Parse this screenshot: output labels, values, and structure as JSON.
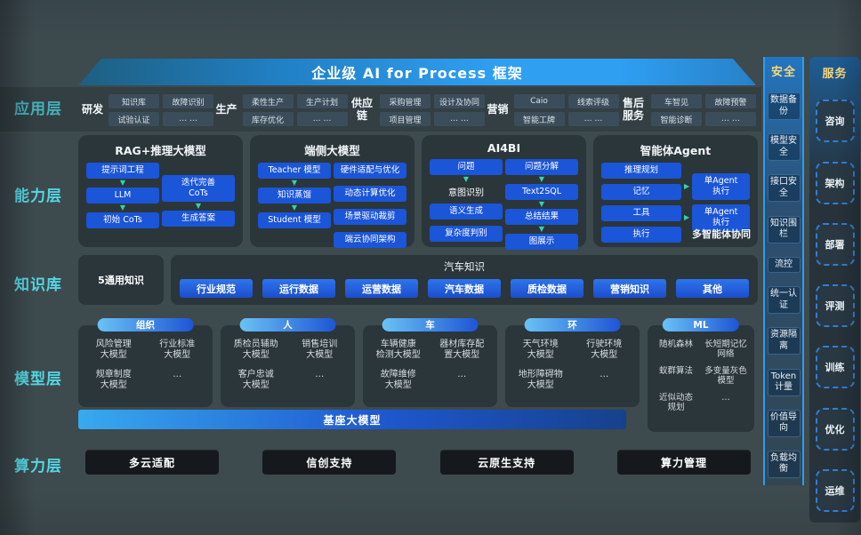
{
  "title": "企业级 AI for Process 框架",
  "colors": {
    "accent_blue": "#1b55d8",
    "label_cyan": "#55d7e3",
    "arrow_teal": "#2fd5ae",
    "header_gold": "#f5d87c",
    "background": "#3d4a4e"
  },
  "app": {
    "label": "应用层",
    "groups": [
      {
        "label": "研发",
        "items": [
          "知识库",
          "故障识别",
          "试验认证",
          "… …"
        ]
      },
      {
        "label": "生产",
        "items": [
          "柔性生产",
          "生产计划",
          "库存优化",
          "… …"
        ]
      },
      {
        "label": "供应链",
        "items": [
          "采购管理",
          "设计及协同",
          "项目管理",
          "… …"
        ]
      },
      {
        "label": "营销",
        "items": [
          "Caio",
          "线索评级",
          "智能工牌",
          "… …"
        ]
      },
      {
        "label": "售后服务",
        "items": [
          "车智见",
          "故障预警",
          "智能诊断",
          "… …"
        ]
      }
    ]
  },
  "capability": {
    "label": "能力层",
    "blocks": [
      {
        "title": "RAG+推理大模型",
        "left": [
          "提示词工程",
          "LLM",
          "初始 CoTs"
        ],
        "right": [
          "迭代完善\nCoTs",
          "生成答案"
        ]
      },
      {
        "title": "端侧大模型",
        "left": [
          "Teacher 模型",
          "知识蒸馏",
          "Student 模型"
        ],
        "right": [
          "硬件适配与优化",
          "动态计算优化",
          "场景驱动裁剪",
          "端云协同架构"
        ]
      },
      {
        "title": "AI4BI",
        "left": [
          "问题",
          "意图识别",
          "语义生成",
          "复杂度判别"
        ],
        "right": [
          "问题分解",
          "Text2SQL",
          "总结结果",
          "图展示"
        ]
      },
      {
        "title": "智能体Agent",
        "left": [
          "推理规划",
          "记忆",
          "工具",
          "执行"
        ],
        "right": [
          "单Agent\n执行",
          "单Agent\n执行"
        ],
        "note": "多智能体协同"
      }
    ]
  },
  "knowledge": {
    "label": "知识库",
    "general": "5通用知识",
    "header": "汽车知识",
    "items": [
      "行业规范",
      "运行数据",
      "运营数据",
      "汽车数据",
      "质检数据",
      "营销知识",
      "其他"
    ]
  },
  "model": {
    "label": "模型层",
    "base": "基座大模型",
    "groups": [
      {
        "pill": "组织",
        "items": [
          "风险管理\n大模型",
          "行业标准\n大模型",
          "规章制度\n大模型",
          "…"
        ]
      },
      {
        "pill": "人",
        "items": [
          "质检员辅助\n大模型",
          "销售培训\n大模型",
          "客户忠诚\n大模型",
          "…"
        ]
      },
      {
        "pill": "车",
        "items": [
          "车辆健康\n检测大模型",
          "器材库存配\n置大模型",
          "故障维修\n大模型",
          "…"
        ]
      },
      {
        "pill": "环",
        "items": [
          "天气环境\n大模型",
          "行驶环境\n大模型",
          "地形障碍物\n大模型",
          "…"
        ]
      },
      {
        "pill": "ML",
        "items": [
          "随机森林",
          "长短期记忆\n网络",
          "蚁群算法",
          "多变量灰色\n模型",
          "近似动态\n规划",
          "…"
        ]
      }
    ]
  },
  "compute": {
    "label": "算力层",
    "items": [
      "多云适配",
      "信创支持",
      "云原生支持",
      "算力管理"
    ]
  },
  "security": {
    "header": "安全",
    "items": [
      "数据备份",
      "模型安全",
      "接口安全",
      "知识围栏",
      "流控",
      "统一认证",
      "资源隔离",
      "Token计量",
      "价值导向",
      "负载均衡"
    ]
  },
  "service": {
    "header": "服务",
    "items": [
      "咨询",
      "架构",
      "部署",
      "评测",
      "训练",
      "优化",
      "运维"
    ]
  }
}
